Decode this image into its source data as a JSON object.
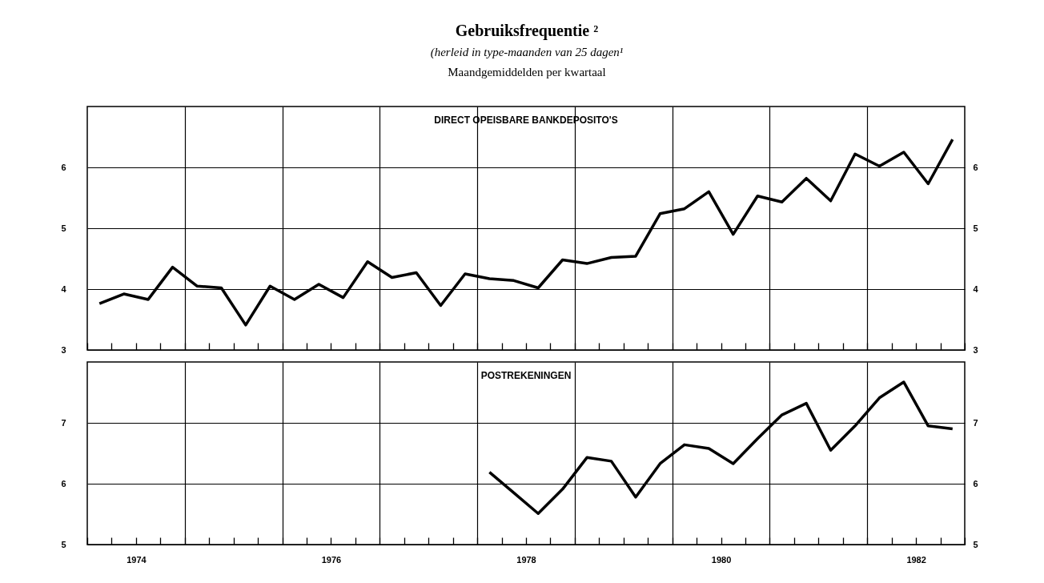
{
  "chart_data": [
    {
      "type": "line",
      "title": "Gebruiksfrequentie ²",
      "subtitle": "(herleid in type-maanden van 25 dagen¹",
      "annotations": [
        "Maandgemiddelden per kwartaal"
      ],
      "x": [
        1974.125,
        1974.375,
        1974.625,
        1974.875,
        1975.125,
        1975.375,
        1975.625,
        1975.875,
        1976.125,
        1976.375,
        1976.625,
        1976.875,
        1977.125,
        1977.375,
        1977.625,
        1977.875,
        1978.125,
        1978.375,
        1978.625,
        1978.875,
        1979.125,
        1979.375,
        1979.625,
        1979.875,
        1980.125,
        1980.375,
        1980.625,
        1980.875,
        1981.125,
        1981.375,
        1981.625,
        1981.875,
        1982.125,
        1982.375,
        1982.625,
        1982.875
      ],
      "series": [
        {
          "name": "DIRECT OPEISBARE BANKDEPOSITO'S",
          "color": "#000000",
          "values": [
            3.76,
            3.92,
            3.83,
            4.36,
            4.05,
            4.02,
            3.41,
            4.05,
            3.83,
            4.08,
            3.86,
            4.45,
            4.19,
            4.27,
            3.73,
            4.25,
            4.17,
            4.14,
            4.02,
            4.48,
            4.42,
            4.52,
            4.54,
            5.24,
            5.32,
            5.6,
            4.9,
            5.53,
            5.43,
            5.82,
            5.45,
            6.22,
            6.02,
            6.25,
            5.73,
            6.46
          ]
        }
      ],
      "xlim": [
        1974,
        1983
      ],
      "ylim": [
        3,
        7
      ],
      "yticks": [
        3,
        4,
        5,
        6
      ],
      "y2lim": [
        3,
        7
      ],
      "y2ticks": [
        3,
        4,
        5,
        6
      ],
      "grid": true,
      "line_style": "solid",
      "tick_labels": "y",
      "xticks": [
        {
          "value": 1974,
          "label": null
        },
        {
          "value": 1974.25,
          "label": null
        },
        {
          "value": 1974.5,
          "label": null
        },
        {
          "value": 1974.75,
          "label": null
        },
        {
          "value": 1975,
          "label": null
        },
        {
          "value": 1975.25,
          "label": null
        },
        {
          "value": 1975.5,
          "label": null
        },
        {
          "value": 1975.75,
          "label": null
        },
        {
          "value": 1976,
          "label": null
        },
        {
          "value": 1976.25,
          "label": null
        },
        {
          "value": 1976.5,
          "label": null
        },
        {
          "value": 1976.75,
          "label": null
        },
        {
          "value": 1977,
          "label": null
        },
        {
          "value": 1977.25,
          "label": null
        },
        {
          "value": 1977.5,
          "label": null
        },
        {
          "value": 1977.75,
          "label": null
        },
        {
          "value": 1978,
          "label": null
        },
        {
          "value": 1978.25,
          "label": null
        },
        {
          "value": 1978.5,
          "label": null
        },
        {
          "value": 1978.75,
          "label": null
        },
        {
          "value": 1979,
          "label": null
        },
        {
          "value": 1979.25,
          "label": null
        },
        {
          "value": 1979.5,
          "label": null
        },
        {
          "value": 1979.75,
          "label": null
        },
        {
          "value": 1980,
          "label": null
        },
        {
          "value": 1980.25,
          "label": null
        },
        {
          "value": 1980.5,
          "label": null
        },
        {
          "value": 1980.75,
          "label": null
        },
        {
          "value": 1981,
          "label": null
        },
        {
          "value": 1981.25,
          "label": null
        },
        {
          "value": 1981.5,
          "label": null
        },
        {
          "value": 1981.75,
          "label": null
        },
        {
          "value": 1982,
          "label": null
        },
        {
          "value": 1982.25,
          "label": null
        },
        {
          "value": 1982.5,
          "label": null
        },
        {
          "value": 1982.75,
          "label": null
        },
        {
          "value": 1983,
          "label": null
        }
      ]
    },
    {
      "type": "line",
      "series": [
        {
          "name": "POSTREKENINGEN",
          "color": "#000000",
          "x": [
            1978.125,
            1978.375,
            1978.625,
            1978.875,
            1979.125,
            1979.375,
            1979.625,
            1979.875,
            1980.125,
            1980.375,
            1980.625,
            1980.875,
            1981.125,
            1981.375,
            1981.625,
            1981.875,
            1982.125,
            1982.375,
            1982.625,
            1982.875
          ],
          "values": [
            6.19,
            5.85,
            5.51,
            5.91,
            6.43,
            6.37,
            5.78,
            6.33,
            6.64,
            6.58,
            6.33,
            6.74,
            7.13,
            7.32,
            6.55,
            6.95,
            7.41,
            7.67,
            6.95,
            6.9
          ]
        }
      ],
      "xlim": [
        1974,
        1983
      ],
      "ylim": [
        5,
        8
      ],
      "yticks": [
        5,
        6,
        7
      ],
      "y2lim": [
        5,
        8
      ],
      "y2ticks": [
        5,
        6,
        7
      ],
      "grid": true,
      "line_style": "solid",
      "xticks": [
        {
          "value": 1974,
          "label": null
        },
        {
          "value": 1974.25,
          "label": null
        },
        {
          "value": 1974.5,
          "label": "1974"
        },
        {
          "value": 1974.75,
          "label": null
        },
        {
          "value": 1975,
          "label": null
        },
        {
          "value": 1975.25,
          "label": null
        },
        {
          "value": 1975.5,
          "label": null
        },
        {
          "value": 1975.75,
          "label": null
        },
        {
          "value": 1976,
          "label": null
        },
        {
          "value": 1976.25,
          "label": null
        },
        {
          "value": 1976.5,
          "label": "1976"
        },
        {
          "value": 1976.75,
          "label": null
        },
        {
          "value": 1977,
          "label": null
        },
        {
          "value": 1977.25,
          "label": null
        },
        {
          "value": 1977.5,
          "label": null
        },
        {
          "value": 1977.75,
          "label": null
        },
        {
          "value": 1978,
          "label": null
        },
        {
          "value": 1978.25,
          "label": null
        },
        {
          "value": 1978.5,
          "label": "1978"
        },
        {
          "value": 1978.75,
          "label": null
        },
        {
          "value": 1979,
          "label": null
        },
        {
          "value": 1979.25,
          "label": null
        },
        {
          "value": 1979.5,
          "label": null
        },
        {
          "value": 1979.75,
          "label": null
        },
        {
          "value": 1980,
          "label": null
        },
        {
          "value": 1980.25,
          "label": null
        },
        {
          "value": 1980.5,
          "label": "1980"
        },
        {
          "value": 1980.75,
          "label": null
        },
        {
          "value": 1981,
          "label": null
        },
        {
          "value": 1981.25,
          "label": null
        },
        {
          "value": 1981.5,
          "label": null
        },
        {
          "value": 1981.75,
          "label": null
        },
        {
          "value": 1982,
          "label": null
        },
        {
          "value": 1982.25,
          "label": null
        },
        {
          "value": 1982.5,
          "label": "1982"
        },
        {
          "value": 1982.75,
          "label": null
        },
        {
          "value": 1983,
          "label": null
        }
      ]
    }
  ]
}
